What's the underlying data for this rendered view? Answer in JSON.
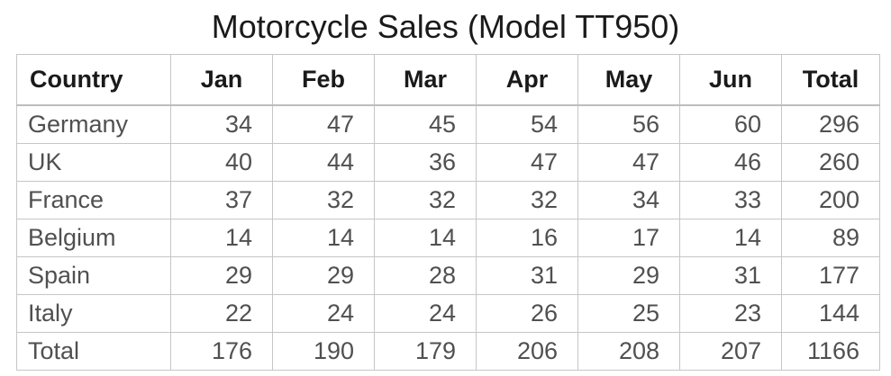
{
  "title": "Motorcycle Sales (Model TT950)",
  "chart_data": {
    "type": "table",
    "title": "Motorcycle Sales (Model TT950)",
    "columns": [
      "Country",
      "Jan",
      "Feb",
      "Mar",
      "Apr",
      "May",
      "Jun",
      "Total"
    ],
    "rows": [
      {
        "label": "Germany",
        "values": [
          34,
          47,
          45,
          54,
          56,
          60
        ],
        "total": 296
      },
      {
        "label": "UK",
        "values": [
          40,
          44,
          36,
          47,
          47,
          46
        ],
        "total": 260
      },
      {
        "label": "France",
        "values": [
          37,
          32,
          32,
          32,
          34,
          33
        ],
        "total": 200
      },
      {
        "label": "Belgium",
        "values": [
          14,
          14,
          14,
          16,
          17,
          14
        ],
        "total": 89
      },
      {
        "label": "Spain",
        "values": [
          29,
          29,
          28,
          31,
          29,
          31
        ],
        "total": 177
      },
      {
        "label": "Italy",
        "values": [
          22,
          24,
          24,
          26,
          25,
          23
        ],
        "total": 144
      },
      {
        "label": "Total",
        "values": [
          176,
          190,
          179,
          206,
          208,
          207
        ],
        "total": 1166
      }
    ]
  }
}
